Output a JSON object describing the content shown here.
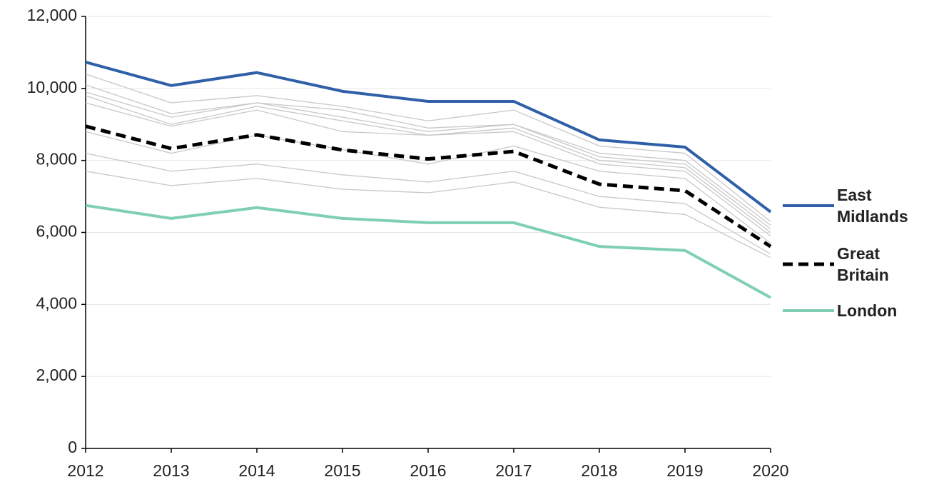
{
  "chart_data": {
    "type": "line",
    "categories": [
      "2012",
      "2013",
      "2014",
      "2015",
      "2016",
      "2017",
      "2018",
      "2019",
      "2020"
    ],
    "ylim": [
      0,
      12000
    ],
    "yticks": [
      0,
      {
        "value": 2000,
        "label": "2,000"
      },
      {
        "value": 4000,
        "label": "4,000"
      },
      {
        "value": 6000,
        "label": "6,000"
      },
      {
        "value": 8000,
        "label": "8,000"
      },
      {
        "value": 10000,
        "label": "10,000"
      },
      {
        "value": 12000,
        "label": "12,000"
      }
    ],
    "grid": true,
    "series": [
      {
        "color": "#c8c8c8",
        "values": [
          10400,
          9600,
          9800,
          9500,
          9100,
          9400,
          8400,
          8200,
          6300
        ]
      },
      {
        "color": "#c8c8c8",
        "values": [
          10100,
          9300,
          9600,
          9400,
          8900,
          9000,
          8200,
          8000,
          6200
        ]
      },
      {
        "color": "#c8c8c8",
        "values": [
          9900,
          9200,
          9600,
          9200,
          8800,
          9000,
          8100,
          7900,
          6100
        ]
      },
      {
        "color": "#c8c8c8",
        "values": [
          9800,
          9000,
          9500,
          9100,
          8700,
          8900,
          8000,
          7800,
          6000
        ]
      },
      {
        "color": "#c8c8c8",
        "values": [
          9600,
          8950,
          9400,
          8800,
          8700,
          8800,
          7900,
          7700,
          5900
        ]
      },
      {
        "color": "#c8c8c8",
        "values": [
          8800,
          8200,
          8700,
          8300,
          7900,
          8400,
          7700,
          7500,
          5700
        ]
      },
      {
        "color": "#c8c8c8",
        "values": [
          8200,
          7700,
          7900,
          7600,
          7400,
          7700,
          7000,
          6800,
          5400
        ]
      },
      {
        "color": "#c8c8c8",
        "values": [
          7700,
          7300,
          7500,
          7200,
          7100,
          7400,
          6700,
          6500,
          5300
        ]
      },
      {
        "name": "East Midlands",
        "color": "#2e5fa8",
        "values": [
          10730,
          10080,
          10440,
          9920,
          9640,
          9640,
          8570,
          8370,
          6570
        ]
      },
      {
        "name": "Great Britain",
        "color": "#000000",
        "dashed": true,
        "values": [
          8950,
          8330,
          8710,
          8290,
          8040,
          8250,
          7340,
          7160,
          5610
        ]
      },
      {
        "name": "London",
        "color": "#7fcfb2",
        "values": [
          6750,
          6390,
          6690,
          6390,
          6270,
          6270,
          5610,
          5500,
          4190
        ]
      }
    ]
  }
}
